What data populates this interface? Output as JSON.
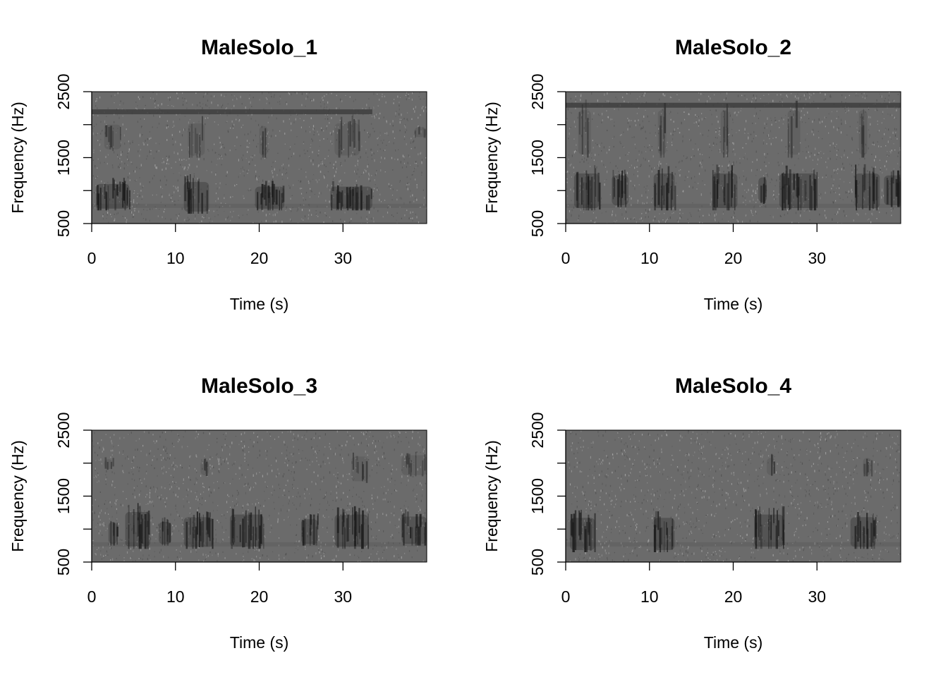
{
  "chart_data": [
    {
      "type": "heatmap",
      "title": "MaleSolo_1",
      "xlabel": "Time (s)",
      "ylabel": "Frequency (Hz)",
      "xlim": [
        0,
        40
      ],
      "ylim": [
        500,
        2500
      ],
      "xticks": [
        0,
        10,
        20,
        30
      ],
      "xtick_labels": [
        "0",
        "10",
        "20",
        "30"
      ],
      "yticks": [
        500,
        1000,
        1500,
        2000,
        2500
      ],
      "ytick_labels": [
        "500",
        "",
        "1500",
        "",
        "2500"
      ],
      "colormap": "grayscale (dark = high energy)",
      "tonal_lines": [
        {
          "freq": 2200,
          "start": 0,
          "end": 33.5
        }
      ],
      "calls": [
        {
          "start": 0.5,
          "end": 4.5,
          "fmin": 700,
          "fmax": 1200,
          "type": "low"
        },
        {
          "start": 1.5,
          "end": 3.5,
          "fmin": 1600,
          "fmax": 2100,
          "type": "high"
        },
        {
          "start": 11,
          "end": 14,
          "fmin": 650,
          "fmax": 1250,
          "type": "low"
        },
        {
          "start": 11.5,
          "end": 13.5,
          "fmin": 1500,
          "fmax": 2150,
          "type": "high"
        },
        {
          "start": 19.5,
          "end": 23,
          "fmin": 700,
          "fmax": 1150,
          "type": "low"
        },
        {
          "start": 20,
          "end": 21,
          "fmin": 1500,
          "fmax": 2100,
          "type": "high"
        },
        {
          "start": 28.5,
          "end": 33.5,
          "fmin": 700,
          "fmax": 1150,
          "type": "low"
        },
        {
          "start": 29,
          "end": 32,
          "fmin": 1500,
          "fmax": 2150,
          "type": "high"
        },
        {
          "start": 38.5,
          "end": 40,
          "fmin": 1800,
          "fmax": 2000,
          "type": "high"
        }
      ]
    },
    {
      "type": "heatmap",
      "title": "MaleSolo_2",
      "xlabel": "Time (s)",
      "ylabel": "Frequency (Hz)",
      "xlim": [
        0,
        40
      ],
      "ylim": [
        500,
        2500
      ],
      "xticks": [
        0,
        10,
        20,
        30
      ],
      "xtick_labels": [
        "0",
        "10",
        "20",
        "30"
      ],
      "yticks": [
        500,
        1000,
        1500,
        2000,
        2500
      ],
      "ytick_labels": [
        "500",
        "",
        "1500",
        "",
        "2500"
      ],
      "colormap": "grayscale (dark = high energy)",
      "tonal_lines": [
        {
          "freq": 2300,
          "start": 0,
          "end": 40
        }
      ],
      "calls": [
        {
          "start": 1,
          "end": 4,
          "fmin": 700,
          "fmax": 1400,
          "type": "low"
        },
        {
          "start": 1.5,
          "end": 3,
          "fmin": 1500,
          "fmax": 2400,
          "type": "high"
        },
        {
          "start": 5.5,
          "end": 7.5,
          "fmin": 750,
          "fmax": 1350,
          "type": "low"
        },
        {
          "start": 10.5,
          "end": 13,
          "fmin": 700,
          "fmax": 1400,
          "type": "low"
        },
        {
          "start": 11,
          "end": 12,
          "fmin": 1500,
          "fmax": 2400,
          "type": "high"
        },
        {
          "start": 17.5,
          "end": 20.5,
          "fmin": 700,
          "fmax": 1400,
          "type": "low"
        },
        {
          "start": 18.5,
          "end": 19.5,
          "fmin": 1500,
          "fmax": 2400,
          "type": "high"
        },
        {
          "start": 23,
          "end": 24,
          "fmin": 800,
          "fmax": 1300,
          "type": "low"
        },
        {
          "start": 25.5,
          "end": 30,
          "fmin": 700,
          "fmax": 1400,
          "type": "low"
        },
        {
          "start": 26.5,
          "end": 28,
          "fmin": 1500,
          "fmax": 2400,
          "type": "high"
        },
        {
          "start": 34.5,
          "end": 37.5,
          "fmin": 700,
          "fmax": 1400,
          "type": "low"
        },
        {
          "start": 35,
          "end": 36,
          "fmin": 1500,
          "fmax": 2400,
          "type": "high"
        },
        {
          "start": 38,
          "end": 40,
          "fmin": 750,
          "fmax": 1350,
          "type": "low"
        }
      ]
    },
    {
      "type": "heatmap",
      "title": "MaleSolo_3",
      "xlabel": "Time (s)",
      "ylabel": "Frequency (Hz)",
      "xlim": [
        0,
        40
      ],
      "ylim": [
        500,
        2500
      ],
      "xticks": [
        0,
        10,
        20,
        30
      ],
      "xtick_labels": [
        "0",
        "10",
        "20",
        "30"
      ],
      "yticks": [
        500,
        1000,
        1500,
        2000,
        2500
      ],
      "ytick_labels": [
        "500",
        "",
        "1500",
        "",
        "2500"
      ],
      "colormap": "grayscale (dark = high energy)",
      "tonal_lines": [],
      "calls": [
        {
          "start": 2,
          "end": 3,
          "fmin": 750,
          "fmax": 1200,
          "type": "low"
        },
        {
          "start": 4,
          "end": 7,
          "fmin": 700,
          "fmax": 1400,
          "type": "low"
        },
        {
          "start": 8,
          "end": 9.5,
          "fmin": 750,
          "fmax": 1200,
          "type": "low"
        },
        {
          "start": 11,
          "end": 14.5,
          "fmin": 700,
          "fmax": 1300,
          "type": "low"
        },
        {
          "start": 16.5,
          "end": 20.5,
          "fmin": 700,
          "fmax": 1350,
          "type": "low"
        },
        {
          "start": 25,
          "end": 27,
          "fmin": 750,
          "fmax": 1250,
          "type": "low"
        },
        {
          "start": 29,
          "end": 33,
          "fmin": 700,
          "fmax": 1350,
          "type": "low"
        },
        {
          "start": 37,
          "end": 40,
          "fmin": 750,
          "fmax": 1300,
          "type": "low"
        },
        {
          "start": 1.5,
          "end": 2.5,
          "fmin": 1900,
          "fmax": 2100,
          "type": "high"
        },
        {
          "start": 13,
          "end": 14,
          "fmin": 1800,
          "fmax": 2100,
          "type": "high"
        },
        {
          "start": 31,
          "end": 33,
          "fmin": 1700,
          "fmax": 2200,
          "type": "high"
        },
        {
          "start": 37,
          "end": 40,
          "fmin": 1800,
          "fmax": 2200,
          "type": "high"
        }
      ]
    },
    {
      "type": "heatmap",
      "title": "MaleSolo_4",
      "xlabel": "Time (s)",
      "ylabel": "Frequency (Hz)",
      "xlim": [
        0,
        40
      ],
      "ylim": [
        500,
        2500
      ],
      "xticks": [
        0,
        10,
        20,
        30
      ],
      "xtick_labels": [
        "0",
        "10",
        "20",
        "30"
      ],
      "yticks": [
        500,
        1000,
        1500,
        2000,
        2500
      ],
      "ytick_labels": [
        "500",
        "",
        "1500",
        "",
        "2500"
      ],
      "colormap": "grayscale (dark = high energy)",
      "tonal_lines": [],
      "calls": [
        {
          "start": 0.5,
          "end": 3.5,
          "fmin": 650,
          "fmax": 1300,
          "type": "low"
        },
        {
          "start": 10.5,
          "end": 13,
          "fmin": 650,
          "fmax": 1300,
          "type": "low"
        },
        {
          "start": 22.5,
          "end": 26,
          "fmin": 700,
          "fmax": 1350,
          "type": "low"
        },
        {
          "start": 34,
          "end": 37,
          "fmin": 700,
          "fmax": 1300,
          "type": "low"
        },
        {
          "start": 24,
          "end": 25,
          "fmin": 1800,
          "fmax": 2150,
          "type": "high"
        },
        {
          "start": 35.5,
          "end": 36.5,
          "fmin": 1800,
          "fmax": 2150,
          "type": "high"
        }
      ]
    }
  ]
}
